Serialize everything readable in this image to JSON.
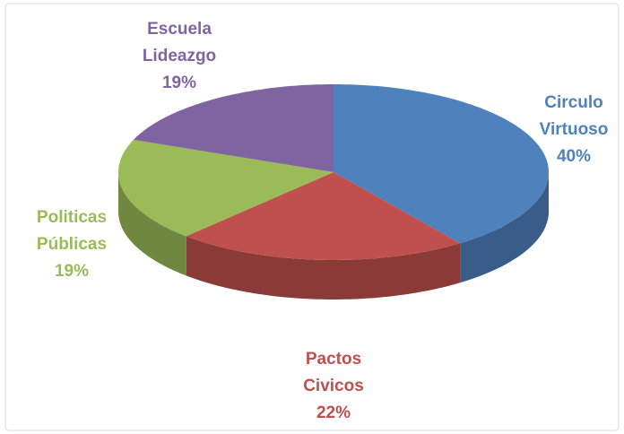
{
  "chart_data": {
    "type": "pie",
    "categories": [
      "Circulo Virtuoso",
      "Pactos Civicos",
      "Politicas Públicas",
      "Escuela Lideazgo"
    ],
    "values": [
      40,
      22,
      19,
      19
    ],
    "value_labels": [
      "40%",
      "22%",
      "19%",
      "19%"
    ],
    "colors": [
      "#4f81bd",
      "#c0504d",
      "#9bbb59",
      "#8064a2"
    ]
  }
}
